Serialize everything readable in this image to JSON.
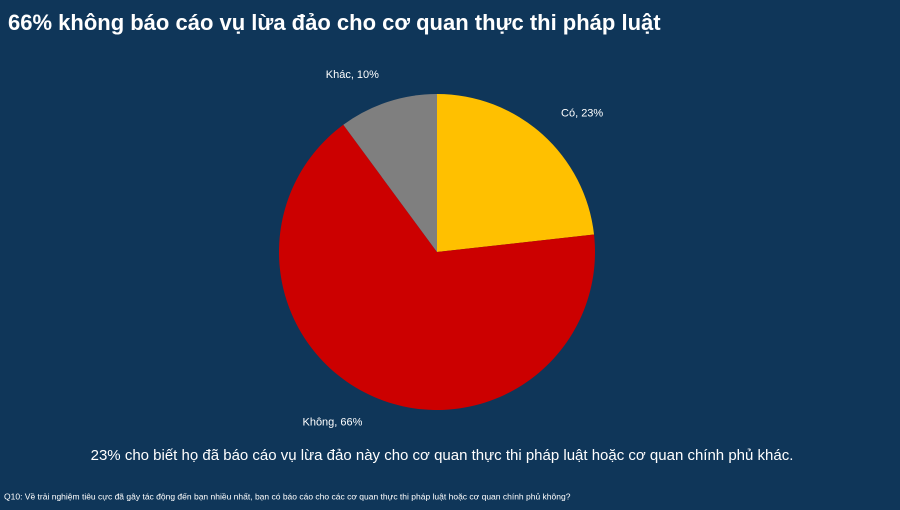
{
  "chart_data": {
    "type": "pie",
    "title": "66% không báo cáo vụ lừa đảo cho cơ quan thực thi pháp luật",
    "subtitle": "23% cho biết họ đã báo cáo vụ lừa đảo này cho cơ quan thực thi pháp luật hoặc cơ quan chính phủ  khác.",
    "footnote": "Q10: Về trải nghiệm tiêu cực đã gây tác động đến bạn nhiều nhất, bạn có báo cáo cho các cơ quan thực thi pháp luật hoặc cơ quan chính phủ không?",
    "categories": [
      "Có",
      "Không",
      "Khác"
    ],
    "values": [
      23,
      66,
      10
    ],
    "value_labels": [
      "Có, 23%",
      "Không, 66%",
      "Khác, 10%"
    ],
    "colors": [
      "#ffc000",
      "#cc0000",
      "#7f7f7f"
    ]
  }
}
